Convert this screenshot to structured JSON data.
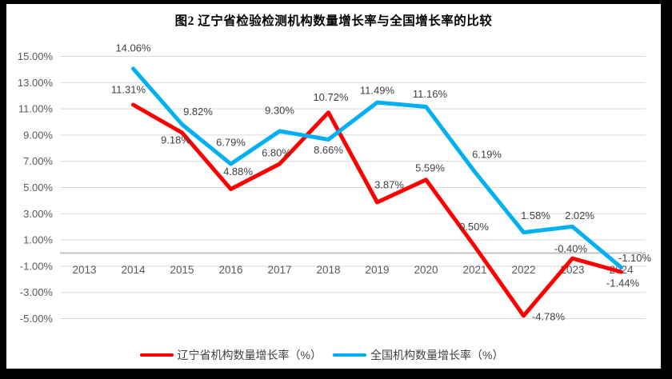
{
  "chart_data": {
    "type": "line",
    "title": "图2 辽宁省检验检测机构数量增长率与全国增长率的比较",
    "categories": [
      "2013",
      "2014",
      "2015",
      "2016",
      "2017",
      "2018",
      "2019",
      "2020",
      "2021",
      "2022",
      "2023",
      "2024"
    ],
    "series": [
      {
        "name": "辽宁省机构数量增长率（%）",
        "color": "#FF0000",
        "values": [
          null,
          11.31,
          9.18,
          4.88,
          6.8,
          10.72,
          3.87,
          5.59,
          0.5,
          -4.78,
          -0.4,
          -1.44
        ],
        "labels": [
          "",
          "11.31%",
          "9.18%",
          "4.88%",
          "6.80%",
          "10.72%",
          "3.87%",
          "5.59%",
          "0.50%",
          "-4.78%",
          "-0.40%",
          "-1.44%"
        ],
        "label_offsets": [
          null,
          [
            -6,
            -19
          ],
          [
            -8,
            9
          ],
          [
            9,
            -22
          ],
          [
            -4,
            -14
          ],
          [
            3,
            -19
          ],
          [
            15,
            -22
          ],
          [
            5,
            -15
          ],
          [
            -1,
            -25
          ],
          [
            31,
            1
          ],
          [
            -2,
            -12
          ],
          [
            2,
            14
          ]
        ]
      },
      {
        "name": "全国机构数量增长率（%）",
        "color": "#00B0F0",
        "values": [
          null,
          14.06,
          9.82,
          6.79,
          9.3,
          8.66,
          11.49,
          11.16,
          6.19,
          1.58,
          2.02,
          -1.1
        ],
        "labels": [
          "",
          "14.06%",
          "9.82%",
          "6.79%",
          "9.30%",
          "8.66%",
          "11.49%",
          "11.16%",
          "6.19%",
          "1.58%",
          "2.02%",
          "-1.10%"
        ],
        "label_offsets": [
          null,
          [
            0,
            -26
          ],
          [
            20,
            -16
          ],
          [
            0,
            -27
          ],
          [
            0,
            -26
          ],
          [
            0,
            13
          ],
          [
            0,
            -15
          ],
          [
            5,
            -16
          ],
          [
            15,
            -22
          ],
          [
            15,
            -21
          ],
          [
            9,
            -14
          ],
          [
            17,
            -12
          ]
        ]
      }
    ],
    "y_axis": {
      "min": -5,
      "max": 15,
      "step": 2,
      "tick_labels": [
        "15.00%",
        "13.00%",
        "11.00%",
        "9.00%",
        "7.00%",
        "5.00%",
        "3.00%",
        "1.00%",
        "-1.00%",
        "-3.00%",
        "-5.00%"
      ],
      "tick_values": [
        15,
        13,
        11,
        9,
        7,
        5,
        3,
        1,
        -1,
        -3,
        -5
      ]
    },
    "x_axis": {
      "tick_labels": [
        "2013",
        "2014",
        "2015",
        "2016",
        "2017",
        "2018",
        "2019",
        "2020",
        "2021",
        "2022",
        "2023",
        "2024"
      ]
    },
    "grid": true,
    "legend_position": "bottom",
    "colors": {
      "gridline": "#D9D9D9",
      "zero_axis_line": "#C3C3C3",
      "axis_text": "#595959",
      "data_label_text": "#404040",
      "title_text": "#000000",
      "plot_background": "#FFFFFF",
      "frame_border": "#000000"
    }
  }
}
